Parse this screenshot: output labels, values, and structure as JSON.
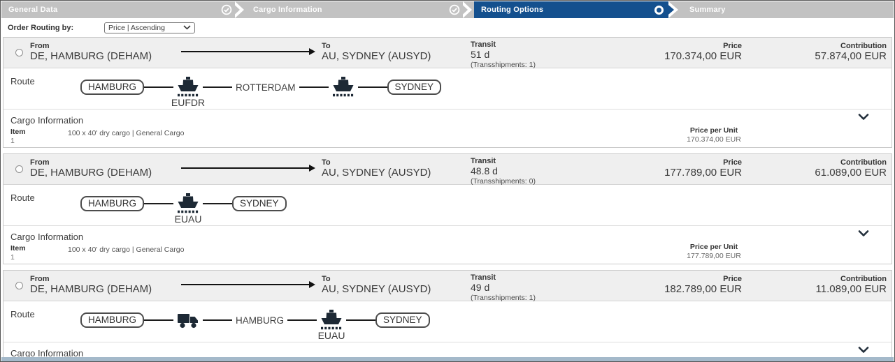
{
  "stepper": {
    "steps": [
      {
        "label": "General Data",
        "state": "completed"
      },
      {
        "label": "Cargo Information",
        "state": "completed"
      },
      {
        "label": "Routing Options",
        "state": "active"
      },
      {
        "label": "Summary",
        "state": "upcoming"
      }
    ],
    "colors": {
      "active": "#14508e",
      "inactive": "#c2c2c2"
    }
  },
  "controls": {
    "order_routing_label": "Order Routing by:",
    "sort_select_value": "Price | Ascending"
  },
  "column_labels": {
    "from": "From",
    "to": "To",
    "transit": "Transit",
    "price": "Price",
    "contribution": "Contribution",
    "route": "Route",
    "cargo_information": "Cargo Information",
    "item": "Item",
    "price_per_unit": "Price per Unit"
  },
  "icons": {
    "completed_step": "check-circle",
    "active_step": "circle-outline",
    "separator": "chevron-right",
    "expand": "chevron-down",
    "vessel": "ship",
    "road": "truck",
    "select_caret": "chevron-down"
  },
  "routing_options": [
    {
      "from": "DE, HAMBURG (DEHAM)",
      "to": "AU, SYDNEY (AUSYD)",
      "transit": "51 d",
      "transshipments": "(Transshipments: 1)",
      "price": "170.374,00 EUR",
      "contribution": "57.874,00 EUR",
      "route": [
        {
          "type": "port-box",
          "label": "HAMBURG"
        },
        {
          "type": "vessel",
          "label": "EUFDR"
        },
        {
          "type": "port-text",
          "label": "ROTTERDAM"
        },
        {
          "type": "vessel",
          "label": ""
        },
        {
          "type": "port-box",
          "label": "SYDNEY"
        }
      ],
      "cargo": {
        "item_no": "1",
        "description": "100 x 40' dry cargo  |  General Cargo",
        "price_per_unit": "170.374,00 EUR"
      }
    },
    {
      "from": "DE, HAMBURG (DEHAM)",
      "to": "AU, SYDNEY (AUSYD)",
      "transit": "48.8 d",
      "transshipments": "(Transshipments: 0)",
      "price": "177.789,00 EUR",
      "contribution": "61.089,00 EUR",
      "route": [
        {
          "type": "port-box",
          "label": "HAMBURG"
        },
        {
          "type": "vessel",
          "label": "EUAU"
        },
        {
          "type": "port-box",
          "label": "SYDNEY"
        }
      ],
      "cargo": {
        "item_no": "1",
        "description": "100 x 40' dry cargo  |  General Cargo",
        "price_per_unit": "177.789,00 EUR"
      }
    },
    {
      "from": "DE, HAMBURG (DEHAM)",
      "to": "AU, SYDNEY (AUSYD)",
      "transit": "49 d",
      "transshipments": "(Transshipments: 1)",
      "price": "182.789,00 EUR",
      "contribution": "11.089,00 EUR",
      "route": [
        {
          "type": "port-box",
          "label": "HAMBURG"
        },
        {
          "type": "truck",
          "label": ""
        },
        {
          "type": "port-text",
          "label": "HAMBURG"
        },
        {
          "type": "vessel",
          "label": "EUAU"
        },
        {
          "type": "port-box",
          "label": "SYDNEY"
        }
      ],
      "cargo": null
    }
  ]
}
